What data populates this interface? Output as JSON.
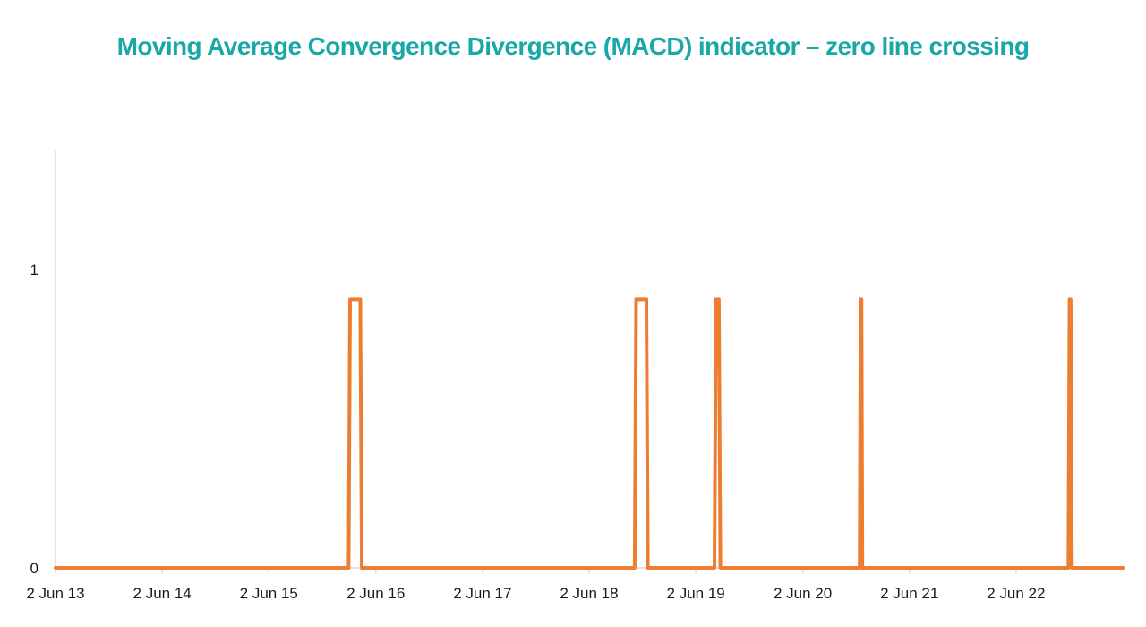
{
  "colors": {
    "title": "#1aa7a8",
    "series": "#ed7d31",
    "axis": "#d9d9d9",
    "text": "#1a1a1a"
  },
  "chart_data": {
    "type": "line",
    "title": "Moving Average Convergence Divergence (MACD) indicator – zero line crossing",
    "xlabel": "",
    "ylabel": "",
    "x_tick_labels": [
      "2 Jun 13",
      "2 Jun 14",
      "2 Jun 15",
      "2 Jun 16",
      "2 Jun 17",
      "2 Jun 18",
      "2 Jun 19",
      "2 Jun 20",
      "2 Jun 21",
      "2 Jun 22"
    ],
    "xlim": [
      "2013-06-02",
      "2023-06-02"
    ],
    "y_tick_labels": [
      "0",
      "1"
    ],
    "ylim": [
      0,
      1.4
    ],
    "grid": false,
    "legend": "none",
    "series": [
      {
        "name": "",
        "points": [
          [
            "2013-06-02",
            0
          ],
          [
            "2016-03-01",
            0
          ],
          [
            "2016-03-06",
            0.9
          ],
          [
            "2016-04-10",
            0.9
          ],
          [
            "2016-04-15",
            0
          ],
          [
            "2018-11-05",
            0
          ],
          [
            "2018-11-10",
            0.9
          ],
          [
            "2018-12-15",
            0.9
          ],
          [
            "2018-12-20",
            0
          ],
          [
            "2019-08-05",
            0
          ],
          [
            "2019-08-10",
            0.9
          ],
          [
            "2019-08-20",
            0.9
          ],
          [
            "2019-08-25",
            0
          ],
          [
            "2020-12-14",
            0
          ],
          [
            "2020-12-17",
            0.9
          ],
          [
            "2020-12-20",
            0.9
          ],
          [
            "2020-12-23",
            0
          ],
          [
            "2022-11-28",
            0
          ],
          [
            "2022-12-02",
            0.9
          ],
          [
            "2022-12-06",
            0.9
          ],
          [
            "2022-12-10",
            0
          ]
        ]
      }
    ]
  }
}
